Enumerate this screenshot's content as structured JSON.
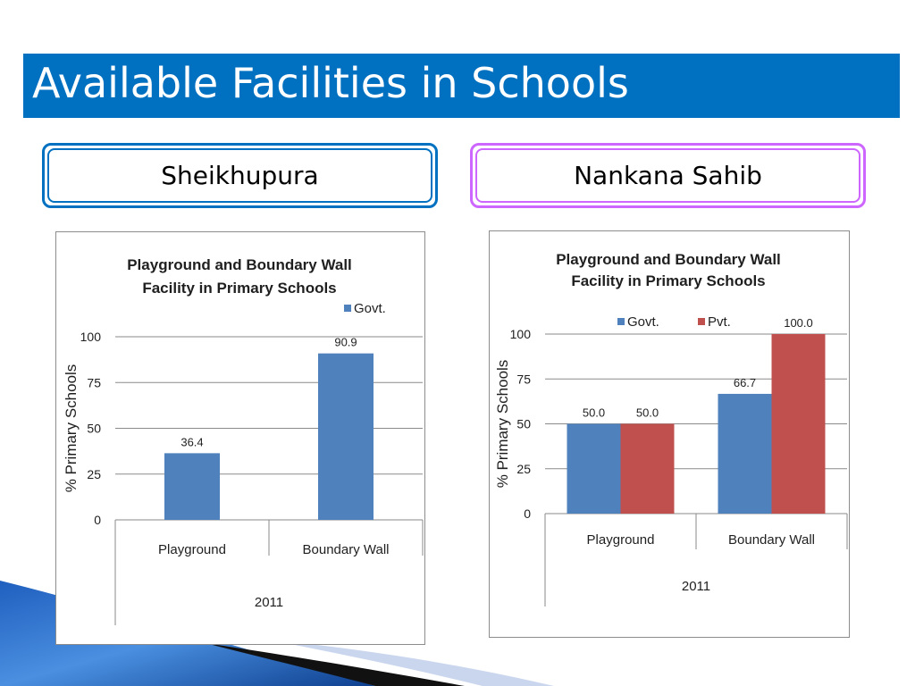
{
  "slide": {
    "title": "Available Facilities in Schools",
    "regions": [
      "Sheikhupura",
      "Nankana Sahib"
    ]
  },
  "colors": {
    "title_bar": "#0070c0",
    "govt": "#4f81bd",
    "pvt": "#c0504d"
  },
  "chart_data": [
    {
      "type": "bar",
      "title": [
        "Playground and Boundary Wall",
        "Facility in Primary Schools"
      ],
      "categories": [
        "Playground",
        "Boundary Wall"
      ],
      "group_label": "2011",
      "ylabel": "% Primary Schools",
      "ylim": [
        0,
        100
      ],
      "yticks": [
        0,
        25,
        50,
        75,
        100
      ],
      "series": [
        {
          "name": "Govt.",
          "color": "#4f81bd",
          "values": [
            36.4,
            90.9
          ],
          "labels": [
            "36.4",
            "90.9"
          ]
        }
      ],
      "legend": "top-right",
      "grid": true
    },
    {
      "type": "bar",
      "title": [
        "Playground and Boundary Wall",
        "Facility in Primary Schools"
      ],
      "categories": [
        "Playground",
        "Boundary Wall"
      ],
      "group_label": "2011",
      "ylabel": "% Primary Schools",
      "ylim": [
        0,
        100
      ],
      "yticks": [
        0,
        25,
        50,
        75,
        100
      ],
      "series": [
        {
          "name": "Govt.",
          "color": "#4f81bd",
          "values": [
            50.0,
            66.7
          ],
          "labels": [
            "50.0",
            "66.7"
          ]
        },
        {
          "name": "Pvt.",
          "color": "#c0504d",
          "values": [
            50.0,
            100.0
          ],
          "labels": [
            "50.0",
            "100.0"
          ]
        }
      ],
      "legend": "top",
      "grid": true
    }
  ]
}
